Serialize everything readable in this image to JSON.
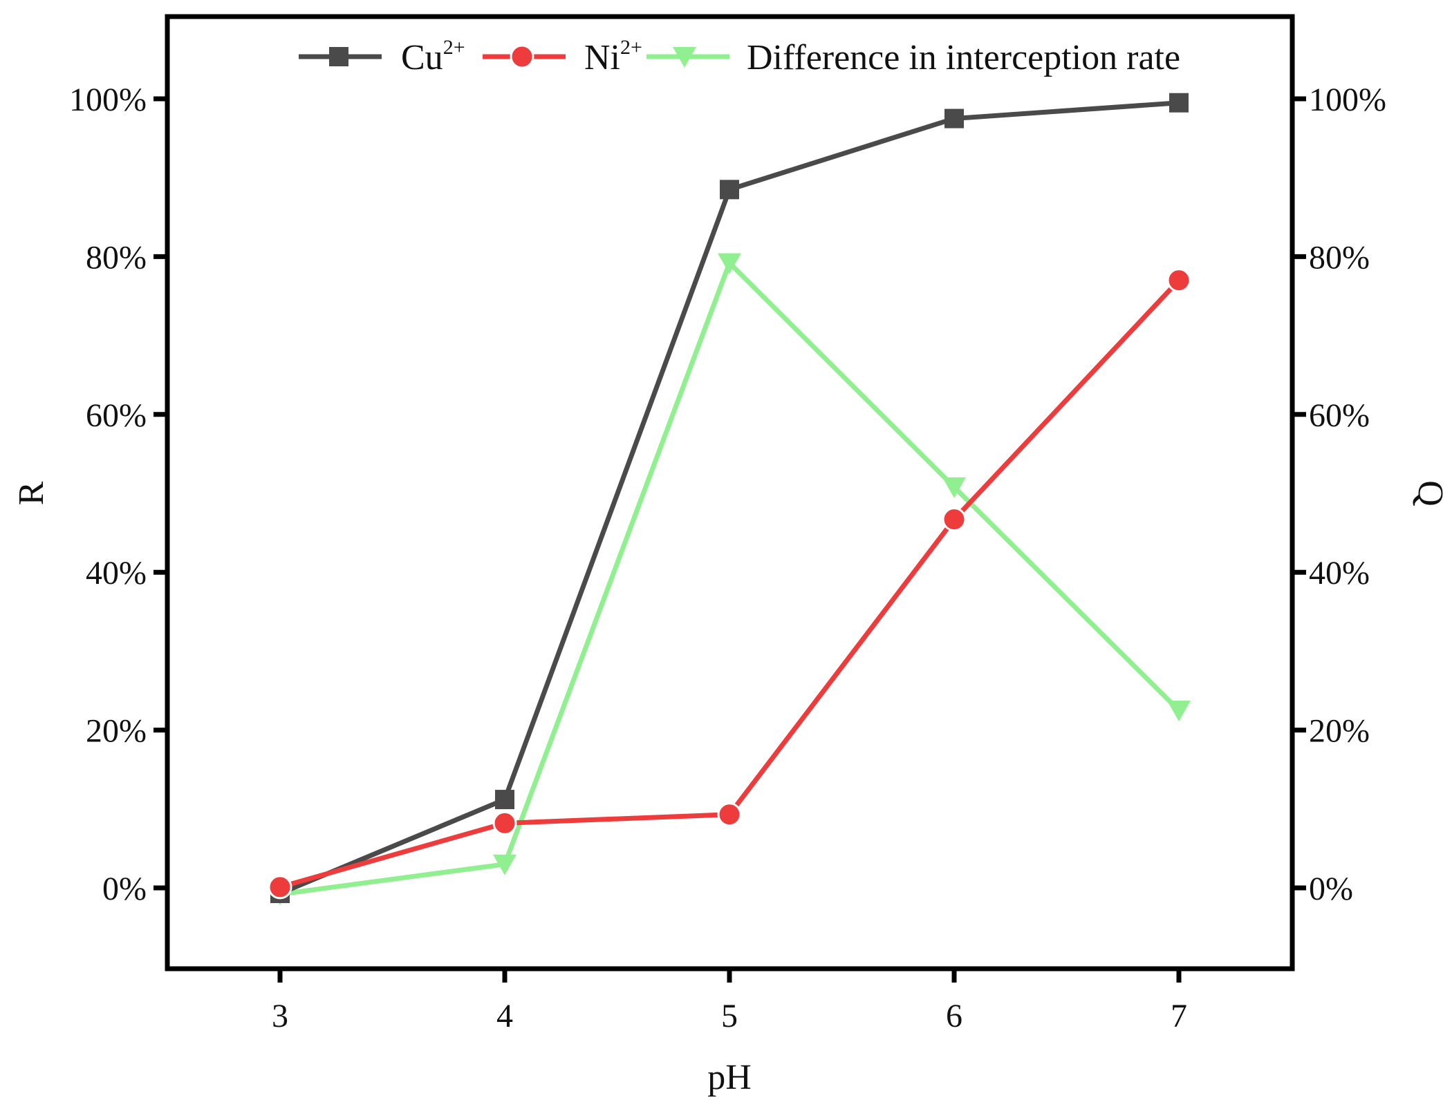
{
  "chart_data": {
    "type": "line",
    "xlabel": "pH",
    "ylabel_left": "R",
    "ylabel_right": "Q",
    "x": [
      3,
      4,
      5,
      6,
      7
    ],
    "x_ticks": [
      "3",
      "4",
      "5",
      "6",
      "7"
    ],
    "xlim": [
      2.5,
      7.5
    ],
    "ylim": [
      -10,
      110
    ],
    "y_ticks_left": [
      "0%",
      "20%",
      "40%",
      "60%",
      "80%",
      "100%"
    ],
    "y_ticks_right": [
      "0%",
      "20%",
      "40%",
      "60%",
      "80%",
      "100%"
    ],
    "y_tick_values": [
      0,
      20,
      40,
      60,
      80,
      100
    ],
    "legend_position": "top",
    "grid": false,
    "series": [
      {
        "name": "Cu",
        "name_sup": "2+",
        "marker": "square",
        "color": "#4a4a4a",
        "axis": "left",
        "values": [
          -0.7,
          11.2,
          88.5,
          97.5,
          99.5
        ]
      },
      {
        "name": "Ni",
        "name_sup": "2+",
        "marker": "circle",
        "color": "#ee3b3b",
        "axis": "left",
        "values": [
          0.1,
          8.2,
          9.3,
          46.7,
          77.0
        ]
      },
      {
        "name": "Difference in interception rate",
        "name_sup": "",
        "marker": "triangle-down",
        "color": "#90f090",
        "axis": "right",
        "values": [
          -0.8,
          3.0,
          79.2,
          50.8,
          22.5
        ]
      }
    ]
  }
}
